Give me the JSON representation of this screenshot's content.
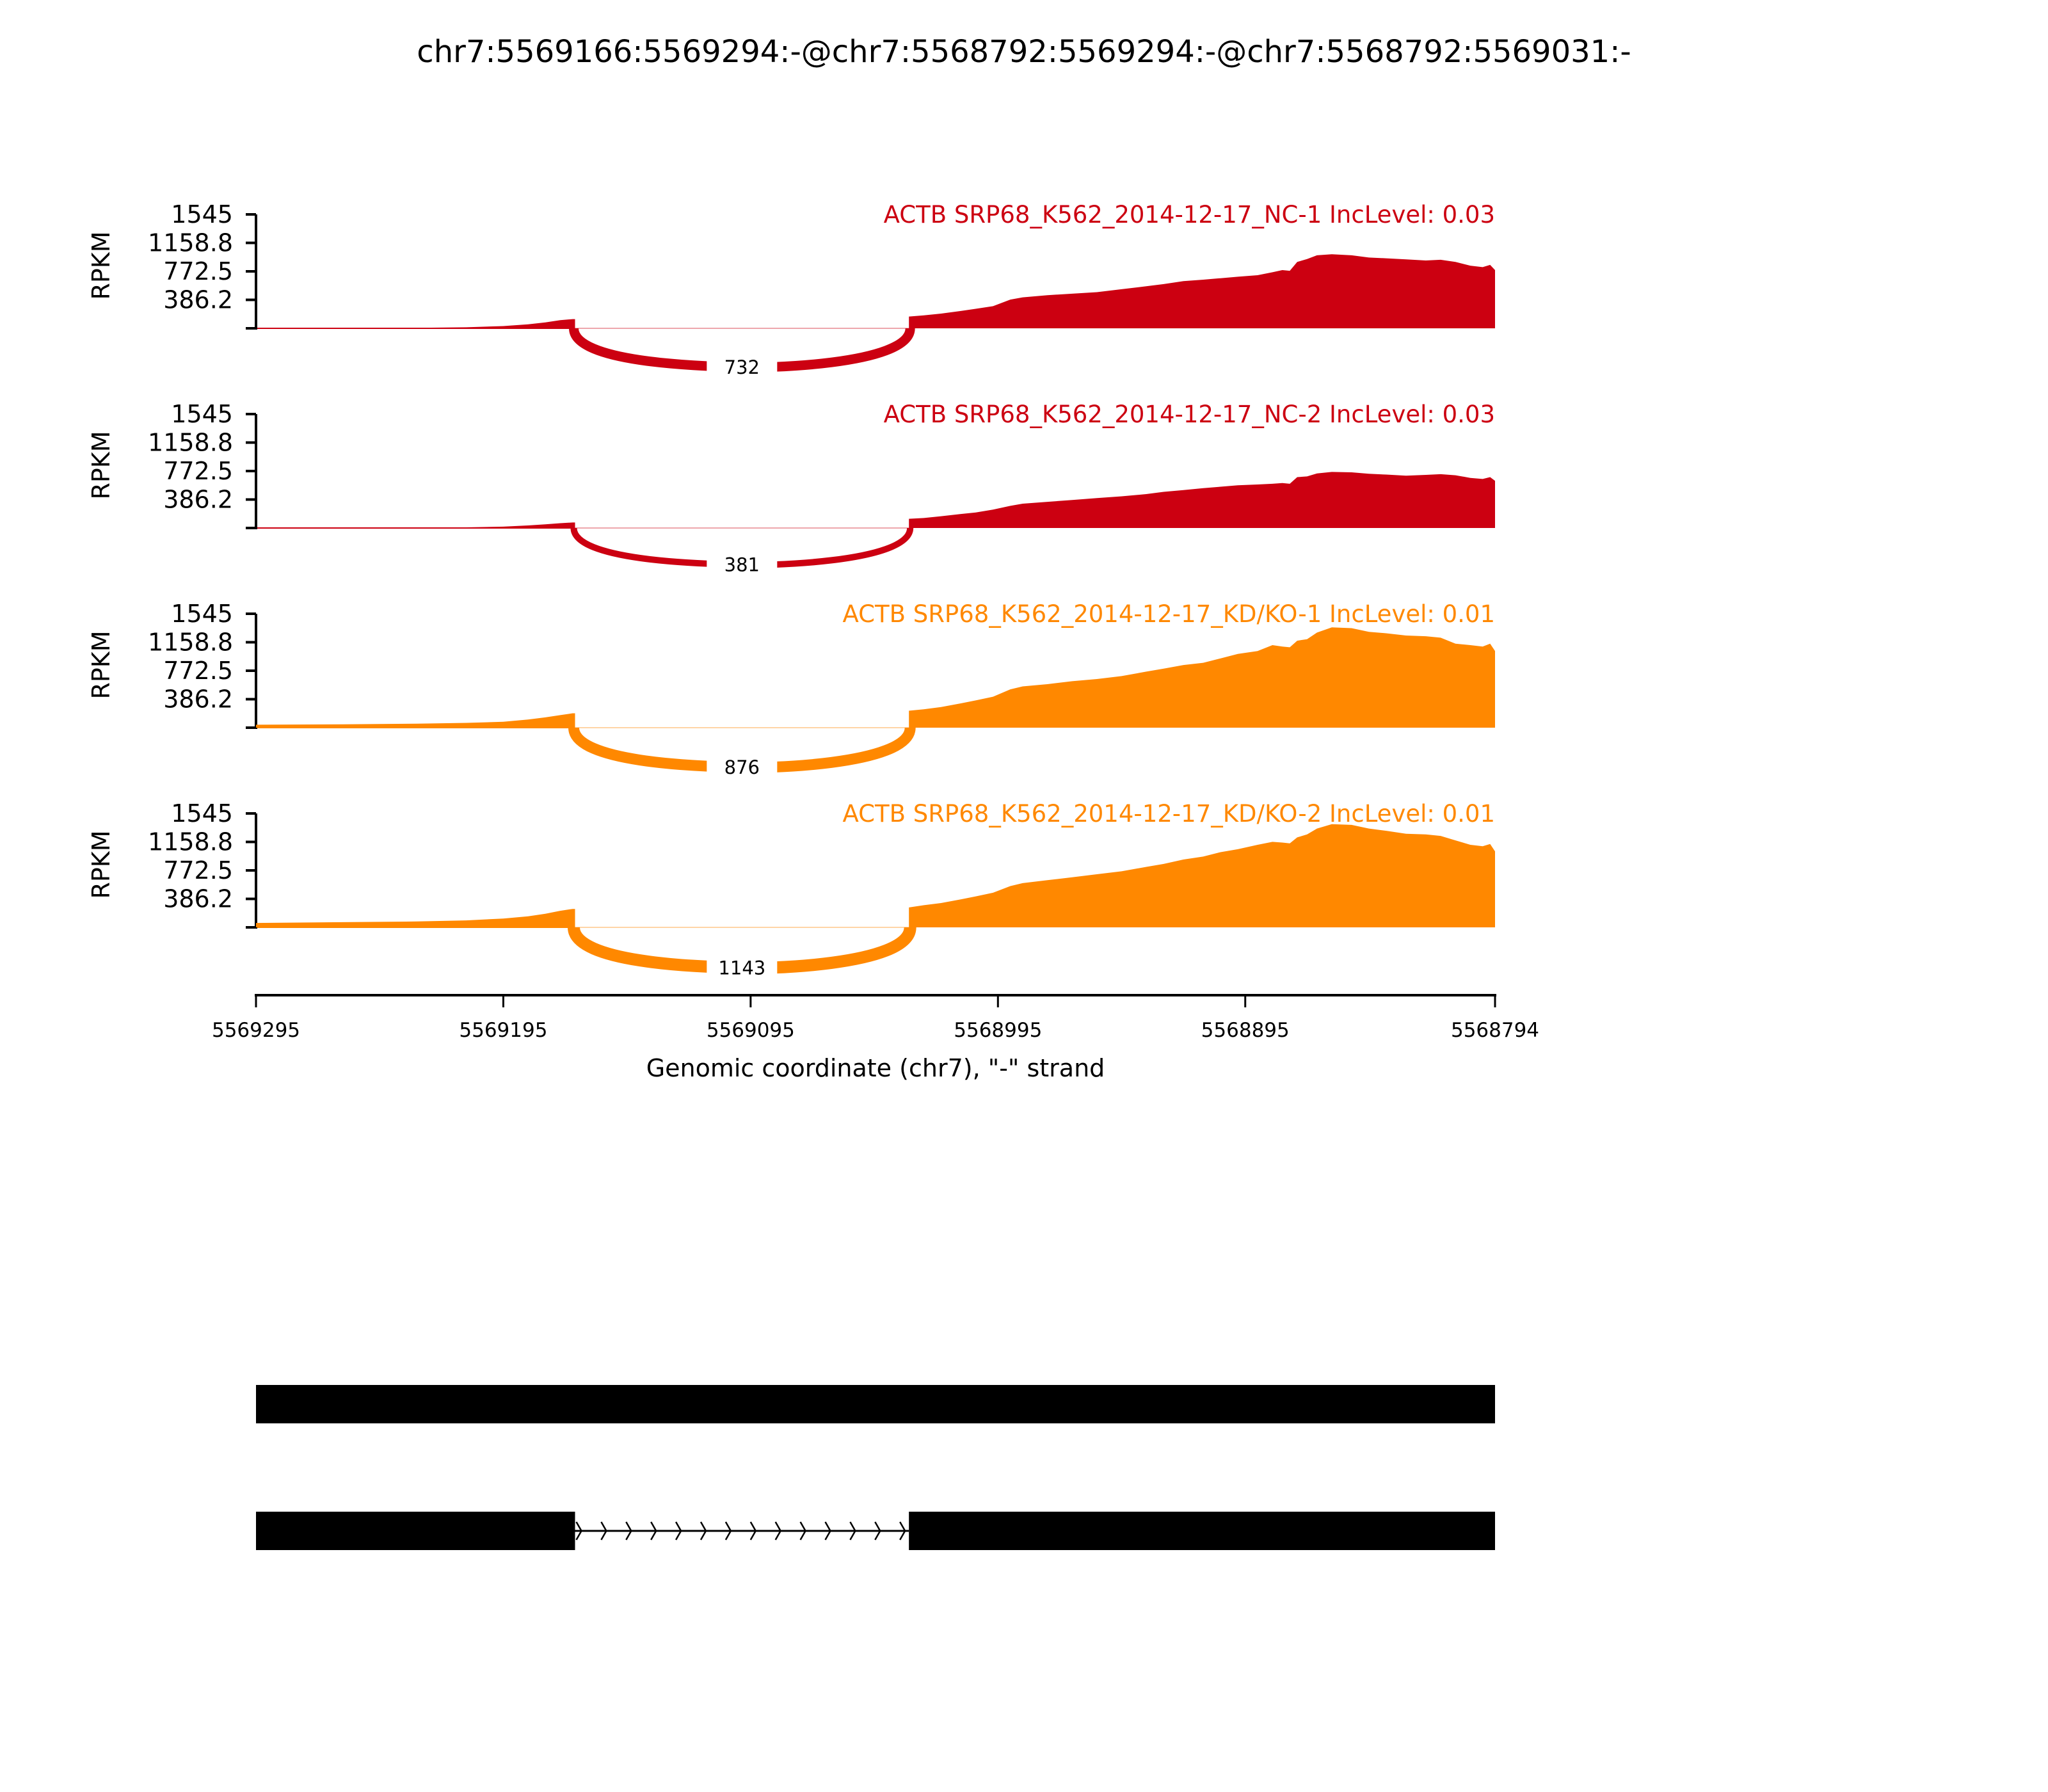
{
  "chart_data": {
    "type": "area",
    "title": "chr7:5569166:5569294:-@chr7:5568792:5569294:-@chr7:5568792:5569031:-",
    "xlabel": "Genomic coordinate (chr7), \"-\" strand",
    "ylabel": "RPKM",
    "xlim": [
      5569295,
      5568794
    ],
    "x_ticks": [
      "5569295",
      "5569195",
      "5569095",
      "5568995",
      "5568895",
      "5568794"
    ],
    "x_tick_values": [
      5569295,
      5569195,
      5569095,
      5568995,
      5568895,
      5568794
    ],
    "ylim": [
      0,
      1545
    ],
    "y_ticks": [
      "1545",
      "1158.8",
      "772.5",
      "386.2"
    ],
    "y_tick_values": [
      1545,
      1158.8,
      772.5,
      386.2
    ],
    "colors": {
      "NC": "#cc0011",
      "KD": "#ff8800"
    },
    "exon1": [
      5569295,
      5569166
    ],
    "exon2": [
      5569031,
      5568794
    ],
    "series": [
      {
        "name": "ACTB SRP68_K562_2014-12-17_NC-1 IncLevel: 0.03",
        "group": "NC",
        "junction_count": "732",
        "junction_width": 15,
        "coverage": [
          [
            5569295,
            2
          ],
          [
            5569260,
            3
          ],
          [
            5569230,
            6
          ],
          [
            5569210,
            14
          ],
          [
            5569195,
            30
          ],
          [
            5569185,
            55
          ],
          [
            5569178,
            80
          ],
          [
            5569172,
            110
          ],
          [
            5569167,
            125
          ],
          [
            5569166,
            125
          ],
          [
            5569031,
            160
          ],
          [
            5569025,
            175
          ],
          [
            5569018,
            200
          ],
          [
            5569010,
            235
          ],
          [
            5569004,
            265
          ],
          [
            5568997,
            300
          ],
          [
            5568990,
            390
          ],
          [
            5568985,
            420
          ],
          [
            5568975,
            450
          ],
          [
            5568965,
            470
          ],
          [
            5568955,
            490
          ],
          [
            5568945,
            530
          ],
          [
            5568935,
            570
          ],
          [
            5568928,
            600
          ],
          [
            5568920,
            640
          ],
          [
            5568912,
            660
          ],
          [
            5568905,
            680
          ],
          [
            5568898,
            700
          ],
          [
            5568890,
            720
          ],
          [
            5568884,
            760
          ],
          [
            5568880,
            790
          ],
          [
            5568877,
            780
          ],
          [
            5568874,
            900
          ],
          [
            5568870,
            940
          ],
          [
            5568866,
            990
          ],
          [
            5568860,
            1005
          ],
          [
            5568852,
            990
          ],
          [
            5568845,
            960
          ],
          [
            5568838,
            950
          ],
          [
            5568830,
            935
          ],
          [
            5568822,
            920
          ],
          [
            5568816,
            930
          ],
          [
            5568810,
            900
          ],
          [
            5568804,
            850
          ],
          [
            5568799,
            830
          ],
          [
            5568796,
            860
          ],
          [
            5568794,
            790
          ]
        ]
      },
      {
        "name": "ACTB SRP68_K562_2014-12-17_NC-2 IncLevel: 0.03",
        "group": "NC",
        "junction_count": "381",
        "junction_width": 10,
        "coverage": [
          [
            5569295,
            1
          ],
          [
            5569260,
            2
          ],
          [
            5569230,
            4
          ],
          [
            5569210,
            9
          ],
          [
            5569195,
            18
          ],
          [
            5569185,
            35
          ],
          [
            5569178,
            50
          ],
          [
            5569172,
            65
          ],
          [
            5569167,
            75
          ],
          [
            5569166,
            75
          ],
          [
            5569031,
            125
          ],
          [
            5569025,
            135
          ],
          [
            5569018,
            160
          ],
          [
            5569010,
            190
          ],
          [
            5569004,
            210
          ],
          [
            5568997,
            250
          ],
          [
            5568990,
            300
          ],
          [
            5568985,
            330
          ],
          [
            5568975,
            355
          ],
          [
            5568965,
            380
          ],
          [
            5568955,
            405
          ],
          [
            5568945,
            430
          ],
          [
            5568935,
            460
          ],
          [
            5568928,
            490
          ],
          [
            5568920,
            515
          ],
          [
            5568912,
            540
          ],
          [
            5568905,
            560
          ],
          [
            5568898,
            580
          ],
          [
            5568890,
            590
          ],
          [
            5568884,
            600
          ],
          [
            5568880,
            610
          ],
          [
            5568877,
            600
          ],
          [
            5568874,
            690
          ],
          [
            5568870,
            700
          ],
          [
            5568866,
            740
          ],
          [
            5568860,
            760
          ],
          [
            5568852,
            755
          ],
          [
            5568845,
            735
          ],
          [
            5568838,
            725
          ],
          [
            5568830,
            710
          ],
          [
            5568822,
            720
          ],
          [
            5568816,
            730
          ],
          [
            5568810,
            715
          ],
          [
            5568804,
            680
          ],
          [
            5568799,
            665
          ],
          [
            5568796,
            690
          ],
          [
            5568794,
            640
          ]
        ]
      },
      {
        "name": "ACTB SRP68_K562_2014-12-17_KD/KO-1 IncLevel: 0.01",
        "group": "KD",
        "junction_count": "876",
        "junction_width": 17,
        "coverage": [
          [
            5569295,
            40
          ],
          [
            5569260,
            45
          ],
          [
            5569230,
            55
          ],
          [
            5569210,
            65
          ],
          [
            5569195,
            80
          ],
          [
            5569185,
            110
          ],
          [
            5569178,
            140
          ],
          [
            5569172,
            170
          ],
          [
            5569167,
            195
          ],
          [
            5569166,
            195
          ],
          [
            5569031,
            230
          ],
          [
            5569025,
            250
          ],
          [
            5569018,
            280
          ],
          [
            5569010,
            330
          ],
          [
            5569004,
            370
          ],
          [
            5568997,
            420
          ],
          [
            5568990,
            520
          ],
          [
            5568985,
            560
          ],
          [
            5568975,
            590
          ],
          [
            5568965,
            630
          ],
          [
            5568955,
            660
          ],
          [
            5568945,
            700
          ],
          [
            5568935,
            760
          ],
          [
            5568928,
            800
          ],
          [
            5568920,
            850
          ],
          [
            5568912,
            880
          ],
          [
            5568905,
            940
          ],
          [
            5568898,
            1000
          ],
          [
            5568890,
            1040
          ],
          [
            5568884,
            1120
          ],
          [
            5568880,
            1100
          ],
          [
            5568877,
            1090
          ],
          [
            5568874,
            1180
          ],
          [
            5568870,
            1200
          ],
          [
            5568866,
            1290
          ],
          [
            5568860,
            1360
          ],
          [
            5568852,
            1350
          ],
          [
            5568845,
            1300
          ],
          [
            5568838,
            1280
          ],
          [
            5568830,
            1250
          ],
          [
            5568822,
            1240
          ],
          [
            5568816,
            1220
          ],
          [
            5568810,
            1140
          ],
          [
            5568804,
            1120
          ],
          [
            5568799,
            1100
          ],
          [
            5568796,
            1140
          ],
          [
            5568794,
            1040
          ]
        ]
      },
      {
        "name": "ACTB SRP68_K562_2014-12-17_KD/KO-2 IncLevel: 0.01",
        "group": "KD",
        "junction_count": "1143",
        "junction_width": 19,
        "coverage": [
          [
            5569295,
            60
          ],
          [
            5569260,
            70
          ],
          [
            5569230,
            80
          ],
          [
            5569210,
            95
          ],
          [
            5569195,
            120
          ],
          [
            5569185,
            150
          ],
          [
            5569178,
            185
          ],
          [
            5569172,
            225
          ],
          [
            5569167,
            250
          ],
          [
            5569166,
            250
          ],
          [
            5569031,
            270
          ],
          [
            5569025,
            300
          ],
          [
            5569018,
            330
          ],
          [
            5569010,
            380
          ],
          [
            5569004,
            420
          ],
          [
            5568997,
            470
          ],
          [
            5568990,
            560
          ],
          [
            5568985,
            600
          ],
          [
            5568975,
            640
          ],
          [
            5568965,
            680
          ],
          [
            5568955,
            720
          ],
          [
            5568945,
            760
          ],
          [
            5568935,
            820
          ],
          [
            5568928,
            860
          ],
          [
            5568920,
            920
          ],
          [
            5568912,
            960
          ],
          [
            5568905,
            1020
          ],
          [
            5568898,
            1060
          ],
          [
            5568890,
            1120
          ],
          [
            5568884,
            1160
          ],
          [
            5568880,
            1150
          ],
          [
            5568877,
            1140
          ],
          [
            5568874,
            1220
          ],
          [
            5568870,
            1260
          ],
          [
            5568866,
            1340
          ],
          [
            5568860,
            1400
          ],
          [
            5568852,
            1390
          ],
          [
            5568845,
            1340
          ],
          [
            5568838,
            1310
          ],
          [
            5568830,
            1270
          ],
          [
            5568822,
            1260
          ],
          [
            5568816,
            1240
          ],
          [
            5568810,
            1180
          ],
          [
            5568804,
            1120
          ],
          [
            5568799,
            1100
          ],
          [
            5568796,
            1130
          ],
          [
            5568794,
            1030
          ]
        ]
      }
    ],
    "gene_models": [
      {
        "exons": [
          [
            5569295,
            5568794
          ]
        ]
      },
      {
        "exons": [
          [
            5569295,
            5569166
          ],
          [
            5569031,
            5568794
          ]
        ]
      }
    ]
  }
}
